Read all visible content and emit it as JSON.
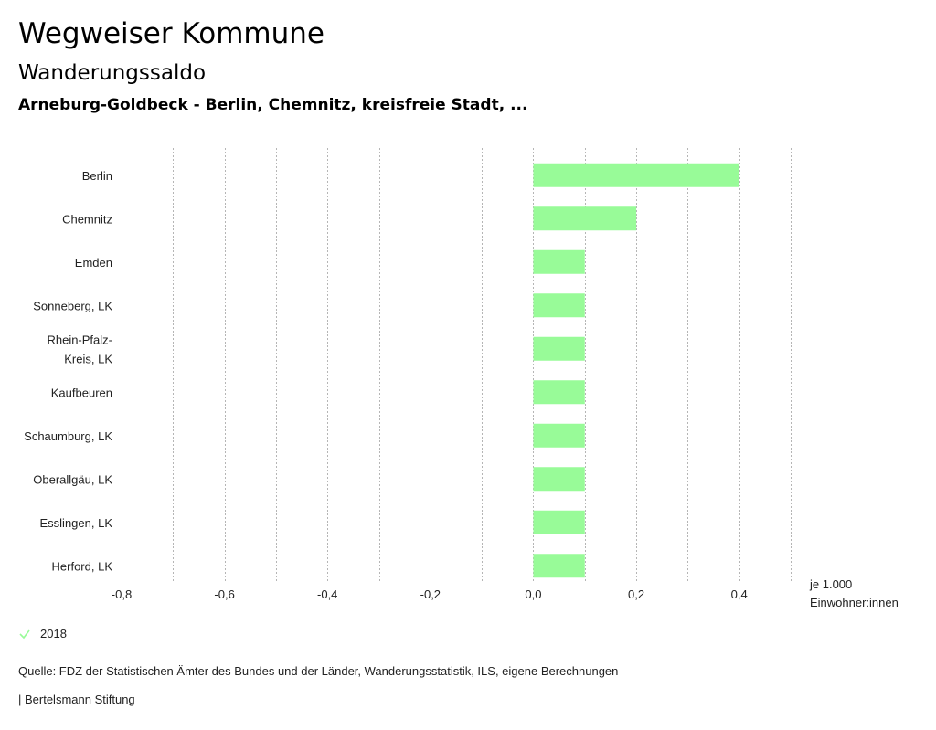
{
  "header": {
    "title": "Wegweiser Kommune",
    "subtitle": "Wanderungssaldo",
    "context": "Arneburg-Goldbeck - Berlin, Chemnitz, kreisfreie Stadt, ..."
  },
  "chart_data": {
    "type": "bar",
    "orientation": "horizontal",
    "categories": [
      "Berlin",
      "Chemnitz",
      "Emden",
      "Sonneberg, LK",
      "Rhein-Pfalz-Kreis, LK",
      "Kaufbeuren",
      "Schaumburg, LK",
      "Oberallgäu, LK",
      "Esslingen, LK",
      "Herford, LK"
    ],
    "category_lines": [
      [
        "Berlin"
      ],
      [
        "Chemnitz"
      ],
      [
        "Emden"
      ],
      [
        "Sonneberg, LK"
      ],
      [
        "Rhein-Pfalz-",
        "Kreis, LK"
      ],
      [
        "Kaufbeuren"
      ],
      [
        "Schaumburg, LK"
      ],
      [
        "Oberallgäu, LK"
      ],
      [
        "Esslingen, LK"
      ],
      [
        "Herford, LK"
      ]
    ],
    "series": [
      {
        "name": "2018",
        "values": [
          0.4,
          0.2,
          0.1,
          0.1,
          0.1,
          0.1,
          0.1,
          0.1,
          0.1,
          0.1
        ]
      }
    ],
    "xlim": [
      -0.8,
      0.5
    ],
    "xticks": [
      -0.8,
      -0.6,
      -0.4,
      -0.2,
      0.0,
      0.2,
      0.4
    ],
    "xtick_labels": [
      "-0,8",
      "-0,6",
      "-0,4",
      "-0,2",
      "0,0",
      "0,2",
      "0,4"
    ],
    "minor_gridlines": [
      -0.7,
      -0.5,
      -0.3,
      -0.1,
      0.1,
      0.3,
      0.5
    ],
    "xlabel_lines": [
      "je 1.000",
      "Einwohner:innen"
    ],
    "grid": true,
    "legend_position": "bottom-left",
    "bar_color": "#98fb98"
  },
  "legend": {
    "label": "2018",
    "icon": "check-icon",
    "color": "#98fb98"
  },
  "footer": {
    "source": "Quelle: FDZ der Statistischen Ämter des Bundes und der Länder, Wanderungsstatistik, ILS, eigene Berechnungen",
    "credit": "| Bertelsmann Stiftung"
  }
}
